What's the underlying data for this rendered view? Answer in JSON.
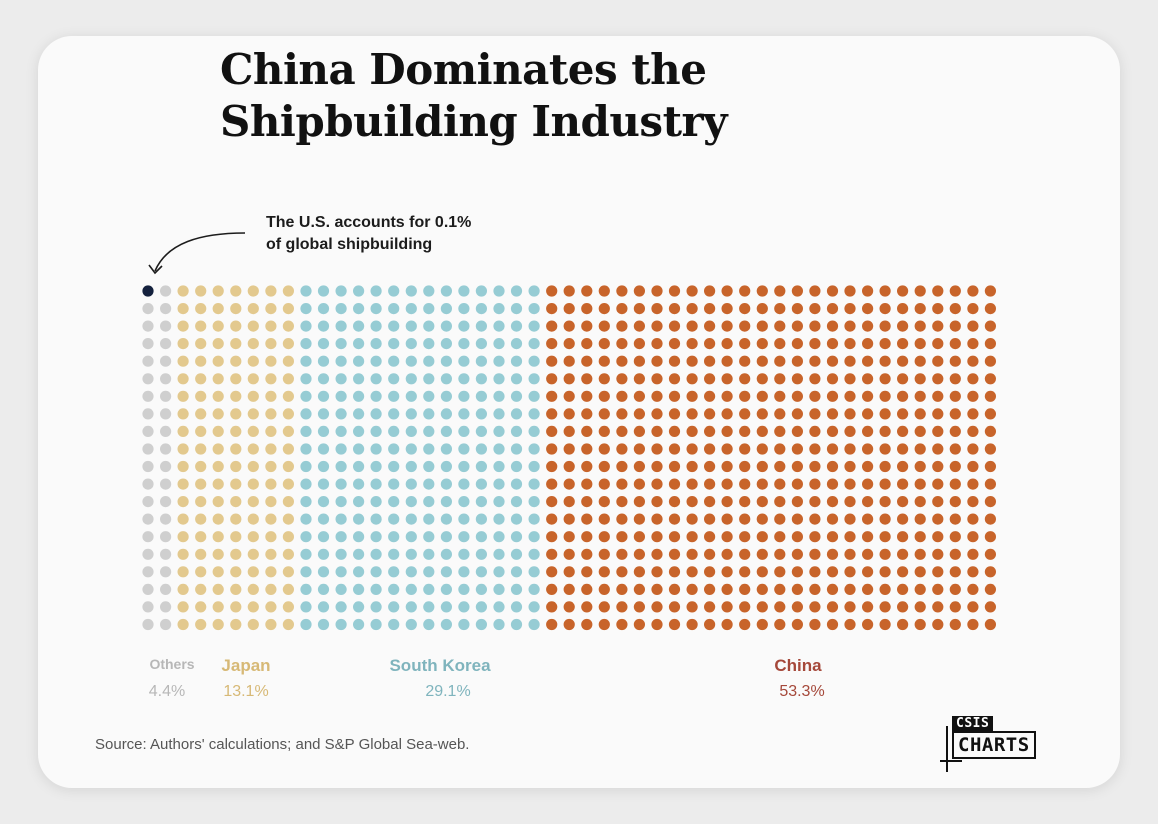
{
  "chart_data": {
    "type": "waffle",
    "title_lines": [
      "China Dominates the",
      "Shipbuilding Industry"
    ],
    "annotation_lines": [
      "The U.S. accounts for 0.1%",
      "of global shipbuilding"
    ],
    "categories": [
      "Others",
      "Japan",
      "South Korea",
      "China"
    ],
    "values": [
      4.4,
      13.1,
      29.1,
      53.3
    ],
    "value_labels": [
      "4.4%",
      "13.1%",
      "29.1%",
      "53.3%"
    ],
    "highlight": {
      "name": "U.S.",
      "value": 0.1
    },
    "grid": {
      "rows": 20,
      "columns": 50
    },
    "columns_per_category": [
      2,
      7,
      14,
      26
    ],
    "colors": {
      "Others": "#cfcfcf",
      "Japan": "#e3c98e",
      "South Korea": "#96ccd4",
      "China": "#c8642a",
      "U.S.": "#14213d"
    },
    "label_colors": {
      "Others": "#b7b7b7",
      "Japan": "#d7b976",
      "South Korea": "#7fb4bd",
      "China": "#a5483a"
    },
    "source": "Source: Authors' calculations; and S&P Global Sea-web.",
    "logo": {
      "top": "CSIS",
      "bottom": "CHARTS"
    }
  }
}
